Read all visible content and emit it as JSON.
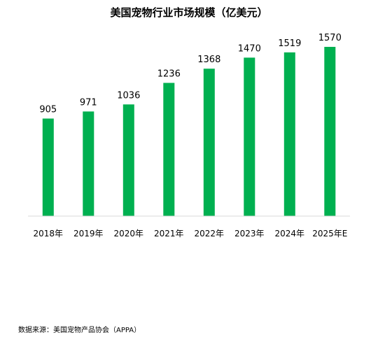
{
  "chart_data": {
    "type": "bar",
    "title": "美国宠物行业市场规模（亿美元）",
    "xlabel": "",
    "ylabel": "",
    "categories": [
      "2018年",
      "2019年",
      "2020年",
      "2021年",
      "2022年",
      "2023年",
      "2024年",
      "2025年E"
    ],
    "values": [
      905,
      971,
      1036,
      1236,
      1368,
      1470,
      1519,
      1570
    ],
    "ylim": [
      0,
      1700
    ],
    "grid": false,
    "legend": "none",
    "bar_color": "#00b050",
    "axis_color": "#d9d9d9"
  },
  "source": "数据来源：美国宠物产品协会（APPA）"
}
